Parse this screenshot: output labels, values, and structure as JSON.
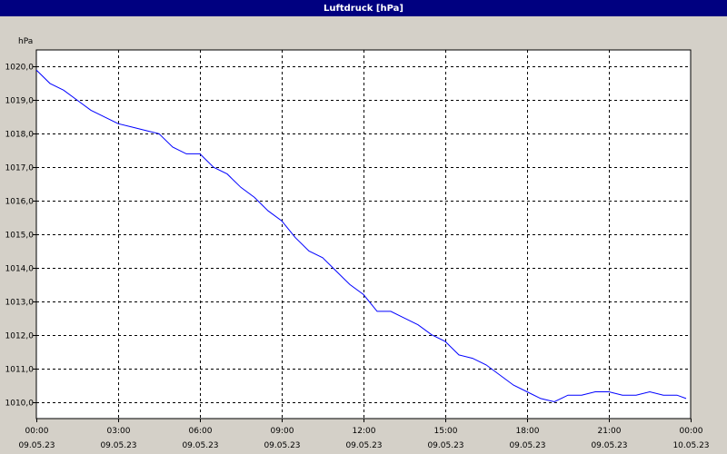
{
  "window": {
    "title": "Luftdruck [hPa]"
  },
  "chart_data": {
    "type": "line",
    "title": "Luftdruck [hPa]",
    "ylabel": "hPa",
    "xlabel": "",
    "ylim": [
      1009.5,
      1020.5
    ],
    "yticks": [
      1010.0,
      1011.0,
      1012.0,
      1013.0,
      1014.0,
      1015.0,
      1016.0,
      1017.0,
      1018.0,
      1019.0,
      1020.0
    ],
    "ytick_labels": [
      "1010,0",
      "1011,0",
      "1012,0",
      "1013,0",
      "1014,0",
      "1015,0",
      "1016,0",
      "1017,0",
      "1018,0",
      "1019,0",
      "1020,0"
    ],
    "xlim": [
      "09.05.23 00:00",
      "10.05.23 00:00"
    ],
    "xticks": [
      {
        "time": "00:00",
        "date": "09.05.23"
      },
      {
        "time": "03:00",
        "date": "09.05.23"
      },
      {
        "time": "06:00",
        "date": "09.05.23"
      },
      {
        "time": "09:00",
        "date": "09.05.23"
      },
      {
        "time": "12:00",
        "date": "09.05.23"
      },
      {
        "time": "15:00",
        "date": "09.05.23"
      },
      {
        "time": "18:00",
        "date": "09.05.23"
      },
      {
        "time": "21:00",
        "date": "09.05.23"
      },
      {
        "time": "00:00",
        "date": "10.05.23"
      }
    ],
    "grid": true,
    "line_color": "#0000ff",
    "series": [
      {
        "x": [
          "00:00",
          "00:30",
          "01:00",
          "01:30",
          "02:00",
          "02:30",
          "03:00",
          "03:30",
          "04:00",
          "04:30",
          "05:00",
          "05:30",
          "06:00",
          "06:30",
          "07:00",
          "07:30",
          "08:00",
          "08:30",
          "09:00",
          "09:30",
          "10:00",
          "10:30",
          "11:00",
          "11:30",
          "12:00",
          "12:30",
          "13:00",
          "13:30",
          "14:00",
          "14:30",
          "15:00",
          "15:30",
          "16:00",
          "16:30",
          "17:00",
          "17:30",
          "18:00",
          "18:30",
          "19:00",
          "19:30",
          "20:00",
          "20:30",
          "21:00",
          "21:30",
          "22:00",
          "22:30",
          "23:00",
          "23:30",
          "23:50"
        ],
        "values": [
          1019.9,
          1019.5,
          1019.3,
          1019.0,
          1018.7,
          1018.5,
          1018.3,
          1018.2,
          1018.1,
          1018.0,
          1017.6,
          1017.4,
          1017.4,
          1017.0,
          1016.8,
          1016.4,
          1016.1,
          1015.7,
          1015.4,
          1014.9,
          1014.5,
          1014.3,
          1013.9,
          1013.5,
          1013.2,
          1012.7,
          1012.7,
          1012.5,
          1012.3,
          1012.0,
          1011.8,
          1011.4,
          1011.3,
          1011.1,
          1010.8,
          1010.5,
          1010.3,
          1010.1,
          1010.0,
          1010.2,
          1010.2,
          1010.3,
          1010.3,
          1010.2,
          1010.2,
          1010.3,
          1010.2,
          1010.2,
          1010.1
        ]
      }
    ]
  }
}
